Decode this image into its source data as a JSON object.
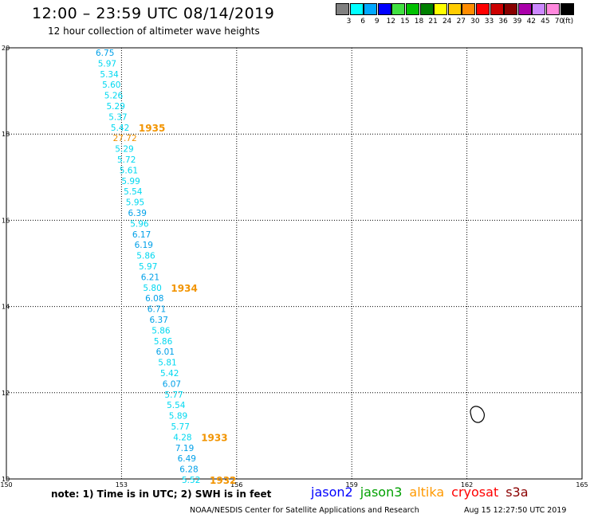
{
  "header": {
    "title": "12:00 – 23:59 UTC 08/14/2019",
    "subtitle": "12 hour collection of altimeter wave heights"
  },
  "colorbar": {
    "unit": "(ft)",
    "entries": [
      {
        "color": "#808080",
        "label": "3"
      },
      {
        "color": "#00ffff",
        "label": "6"
      },
      {
        "color": "#00a8ff",
        "label": "9"
      },
      {
        "color": "#0000ff",
        "label": "12"
      },
      {
        "color": "#40e040",
        "label": "15"
      },
      {
        "color": "#00c000",
        "label": "18"
      },
      {
        "color": "#008000",
        "label": "21"
      },
      {
        "color": "#ffff00",
        "label": "24"
      },
      {
        "color": "#ffcc00",
        "label": "27"
      },
      {
        "color": "#ff8c00",
        "label": "30"
      },
      {
        "color": "#ff0000",
        "label": "33"
      },
      {
        "color": "#cc0000",
        "label": "36"
      },
      {
        "color": "#880000",
        "label": "39"
      },
      {
        "color": "#aa00aa",
        "label": "42"
      },
      {
        "color": "#cc88ff",
        "label": "45"
      },
      {
        "color": "#ff88dd",
        "label": "70"
      },
      {
        "color": "#000000",
        "label": ""
      }
    ]
  },
  "map": {
    "lon_ticks": [
      "150",
      "153",
      "156",
      "159",
      "162",
      "165"
    ],
    "lat_ticks": [
      "10",
      "12",
      "14",
      "16",
      "18",
      "20"
    ],
    "lon_range": [
      150,
      165
    ],
    "lat_range": [
      10,
      20
    ],
    "grid": "dotted",
    "colors": {
      "cyan": "#00d8f0",
      "blue": "#00a0e8",
      "orange": "#f09000"
    },
    "wave_heights": [
      {
        "text": "6.75",
        "c": "blue"
      },
      {
        "text": "5.97",
        "c": "cyan"
      },
      {
        "text": "5.34",
        "c": "cyan"
      },
      {
        "text": "5.60",
        "c": "cyan"
      },
      {
        "text": "5.26",
        "c": "cyan"
      },
      {
        "text": "5.29",
        "c": "cyan"
      },
      {
        "text": "5.37",
        "c": "cyan"
      },
      {
        "text": "5.42",
        "c": "cyan"
      },
      {
        "text": "27.72",
        "c": "orange"
      },
      {
        "text": "5.29",
        "c": "cyan"
      },
      {
        "text": "5.72",
        "c": "cyan"
      },
      {
        "text": "5.61",
        "c": "cyan"
      },
      {
        "text": "5.99",
        "c": "cyan"
      },
      {
        "text": "5.54",
        "c": "cyan"
      },
      {
        "text": "5.95",
        "c": "cyan"
      },
      {
        "text": "6.39",
        "c": "blue"
      },
      {
        "text": "5.96",
        "c": "cyan"
      },
      {
        "text": "6.17",
        "c": "blue"
      },
      {
        "text": "6.19",
        "c": "blue"
      },
      {
        "text": "5.86",
        "c": "cyan"
      },
      {
        "text": "5.97",
        "c": "cyan"
      },
      {
        "text": "6.21",
        "c": "blue"
      },
      {
        "text": "5.80",
        "c": "cyan"
      },
      {
        "text": "6.08",
        "c": "blue"
      },
      {
        "text": "6.71",
        "c": "blue"
      },
      {
        "text": "6.37",
        "c": "blue"
      },
      {
        "text": "5.86",
        "c": "cyan"
      },
      {
        "text": "5.86",
        "c": "cyan"
      },
      {
        "text": "6.01",
        "c": "blue"
      },
      {
        "text": "5.81",
        "c": "cyan"
      },
      {
        "text": "5.42",
        "c": "cyan"
      },
      {
        "text": "6.07",
        "c": "blue"
      },
      {
        "text": "5.77",
        "c": "cyan"
      },
      {
        "text": "5.54",
        "c": "cyan"
      },
      {
        "text": "5.89",
        "c": "cyan"
      },
      {
        "text": "5.77",
        "c": "cyan"
      },
      {
        "text": "4.28",
        "c": "cyan"
      },
      {
        "text": "7.19",
        "c": "blue"
      },
      {
        "text": "6.49",
        "c": "blue"
      },
      {
        "text": "6.28",
        "c": "blue"
      },
      {
        "text": "5.52",
        "c": "cyan"
      }
    ],
    "time_labels": [
      {
        "text": "1935",
        "row": 7
      },
      {
        "text": "1934",
        "row": 22
      },
      {
        "text": "1933",
        "row": 36
      },
      {
        "text": "1932",
        "row": 40
      }
    ]
  },
  "footer": {
    "note": "note: 1) Time is in UTC; 2) SWH is in feet",
    "satellites": [
      {
        "name": "jason2",
        "color": "#0000ff"
      },
      {
        "name": "jason3",
        "color": "#00a000"
      },
      {
        "name": "altika",
        "color": "#ff9900"
      },
      {
        "name": "cryosat",
        "color": "#ff0000"
      },
      {
        "name": "s3a",
        "color": "#8b0000"
      }
    ],
    "credit": "NOAA/NESDIS Center for Satellite Applications and Research",
    "timestamp": "Aug 15 12:27:50 UTC 2019"
  }
}
